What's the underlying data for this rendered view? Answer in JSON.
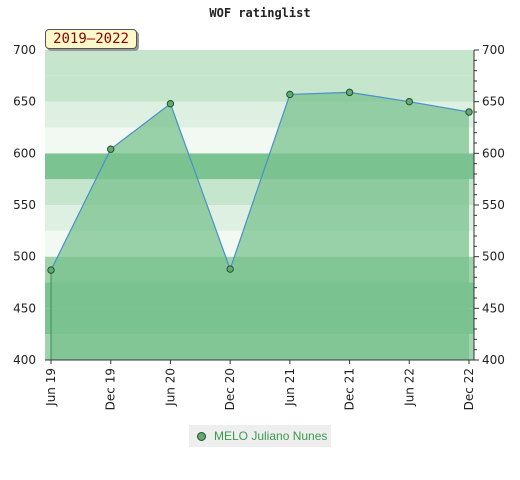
{
  "chart_data": {
    "type": "area",
    "title": "WOF ratinglist",
    "period": "2019–2022",
    "categories": [
      "Jun 19",
      "Dec 19",
      "Jun 20",
      "Dec 20",
      "Jun 21",
      "Dec 21",
      "Jun 22",
      "Dec 22"
    ],
    "series": [
      {
        "name": "MELO Juliano Nunes",
        "values": [
          487,
          604,
          648,
          488,
          657,
          659,
          650,
          640
        ]
      }
    ],
    "ylim": [
      400,
      700
    ],
    "yticks": [
      400,
      450,
      500,
      550,
      600,
      650,
      700
    ],
    "y_axis_both_sides": true,
    "grid": true,
    "legend_position": "bottom",
    "xlabel": "",
    "ylabel": ""
  },
  "colors": {
    "area_fill": "#79c28e",
    "line": "#4a90c8",
    "marker": "#5cae6e",
    "marker_stroke": "#2d4a33",
    "band_dark": "#7cc392",
    "band_mid": "#9fd3ad",
    "band_light": "#c5e6cd",
    "band_pale": "#ddf0e1",
    "band_white": "#f1f9f2"
  }
}
